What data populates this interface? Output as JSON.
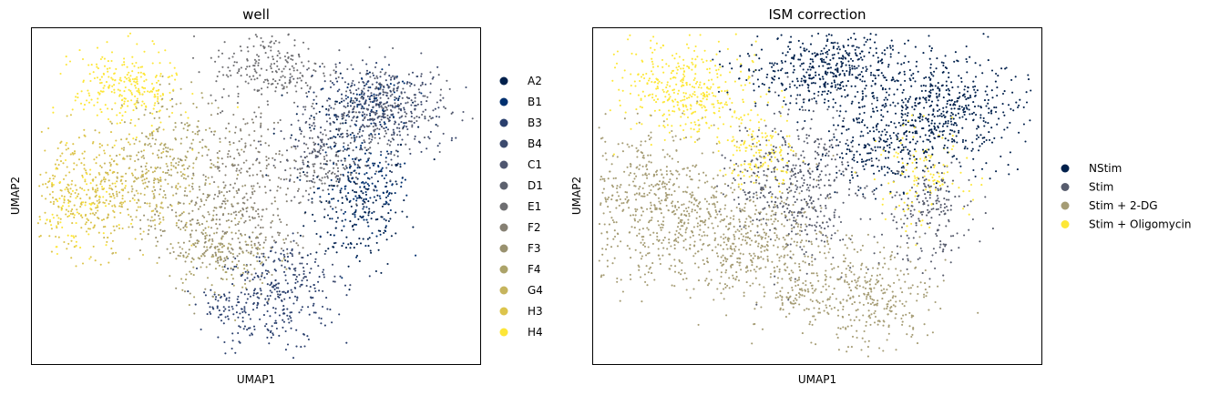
{
  "chart_data": [
    {
      "type": "scatter",
      "title": "well",
      "xlabel": "UMAP1",
      "ylabel": "UMAP2",
      "xlim": [
        -6,
        6
      ],
      "ylim": [
        -5,
        5
      ],
      "ticks": false,
      "grid": false,
      "legend_position": "right",
      "series": [
        {
          "name": "A2",
          "color": "#00204c",
          "clusters": [
            [
              2.7,
              -0.4,
              0.7,
              0.9,
              180
            ],
            [
              2.3,
              2.3,
              0.9,
              0.6,
              60
            ]
          ]
        },
        {
          "name": "B1",
          "color": "#00306f",
          "clusters": [
            [
              2.9,
              0.3,
              0.6,
              0.8,
              170
            ],
            [
              3.2,
              2.8,
              0.5,
              0.4,
              60
            ]
          ]
        },
        {
          "name": "B3",
          "color": "#2a3f6d",
          "clusters": [
            [
              0.5,
              -3.0,
              0.8,
              0.8,
              260
            ],
            [
              -0.9,
              -3.3,
              0.4,
              0.3,
              60
            ],
            [
              2.7,
              2.9,
              0.6,
              0.5,
              80
            ]
          ]
        },
        {
          "name": "B4",
          "color": "#3c4a6e",
          "clusters": [
            [
              3.5,
              2.4,
              0.8,
              0.7,
              180
            ],
            [
              1.2,
              -2.2,
              0.5,
              0.4,
              60
            ]
          ]
        },
        {
          "name": "C1",
          "color": "#4f5670",
          "clusters": [
            [
              3.6,
              2.7,
              0.7,
              0.6,
              120
            ],
            [
              1.6,
              1.6,
              0.6,
              0.8,
              90
            ]
          ]
        },
        {
          "name": "D1",
          "color": "#5d616e",
          "clusters": [
            [
              3.4,
              2.6,
              0.8,
              0.7,
              150
            ],
            [
              1.9,
              1.1,
              0.6,
              0.6,
              100
            ]
          ]
        },
        {
          "name": "E1",
          "color": "#6e6e71",
          "clusters": [
            [
              0.4,
              3.8,
              0.8,
              0.6,
              230
            ],
            [
              1.8,
              0.8,
              0.5,
              0.6,
              80
            ]
          ]
        },
        {
          "name": "F2",
          "color": "#868073",
          "clusters": [
            [
              -0.3,
              0.8,
              0.7,
              0.9,
              200
            ],
            [
              0.0,
              -1.2,
              0.6,
              0.5,
              80
            ]
          ]
        },
        {
          "name": "F3",
          "color": "#99916f",
          "clusters": [
            [
              -1.5,
              -0.8,
              0.8,
              0.9,
              230
            ]
          ]
        },
        {
          "name": "F4",
          "color": "#aca369",
          "clusters": [
            [
              -2.2,
              1.6,
              0.7,
              0.8,
              180
            ],
            [
              -1.0,
              -1.8,
              0.7,
              0.6,
              140
            ]
          ]
        },
        {
          "name": "G4",
          "color": "#c6b45d",
          "clusters": [
            [
              -2.9,
              0.2,
              0.7,
              0.8,
              170
            ]
          ]
        },
        {
          "name": "H3",
          "color": "#dcc44c",
          "clusters": [
            [
              -4.6,
              0.1,
              0.9,
              0.9,
              360
            ]
          ]
        },
        {
          "name": "H4",
          "color": "#fde638",
          "clusters": [
            [
              -3.5,
              3.2,
              0.7,
              0.6,
              260
            ],
            [
              -4.8,
              -0.4,
              0.6,
              0.6,
              80
            ]
          ]
        }
      ]
    },
    {
      "type": "scatter",
      "title": "ISM correction",
      "xlabel": "UMAP1",
      "ylabel": "UMAP2",
      "xlim": [
        -6,
        6
      ],
      "ylim": [
        -5,
        5
      ],
      "ticks": false,
      "grid": false,
      "legend_position": "right",
      "series": [
        {
          "name": "NStim",
          "color": "#00204c",
          "clusters": [
            [
              0.3,
              3.8,
              1.1,
              0.6,
              480
            ],
            [
              3.3,
              2.6,
              1.0,
              0.8,
              520
            ],
            [
              1.6,
              1.6,
              0.7,
              0.7,
              220
            ]
          ]
        },
        {
          "name": "Stim",
          "color": "#575c6d",
          "clusters": [
            [
              -0.3,
              0.2,
              0.7,
              1.2,
              380
            ],
            [
              3.0,
              -0.5,
              0.6,
              0.8,
              200
            ],
            [
              -1.6,
              0.5,
              0.5,
              0.6,
              80
            ]
          ]
        },
        {
          "name": "Stim + 2-DG",
          "color": "#a59c74",
          "clusters": [
            [
              -4.3,
              -0.3,
              1.1,
              1.1,
              650
            ],
            [
              -1.6,
              -1.4,
              1.0,
              0.9,
              420
            ],
            [
              1.3,
              -3.0,
              0.9,
              0.8,
              350
            ],
            [
              -0.6,
              -2.9,
              0.4,
              0.3,
              60
            ]
          ]
        },
        {
          "name": "Stim + Oligomycin",
          "color": "#fde737",
          "clusters": [
            [
              -3.4,
              3.2,
              0.9,
              0.7,
              380
            ],
            [
              -1.6,
              1.3,
              0.5,
              0.5,
              140
            ],
            [
              2.7,
              0.6,
              0.6,
              0.7,
              130
            ]
          ]
        }
      ]
    }
  ]
}
